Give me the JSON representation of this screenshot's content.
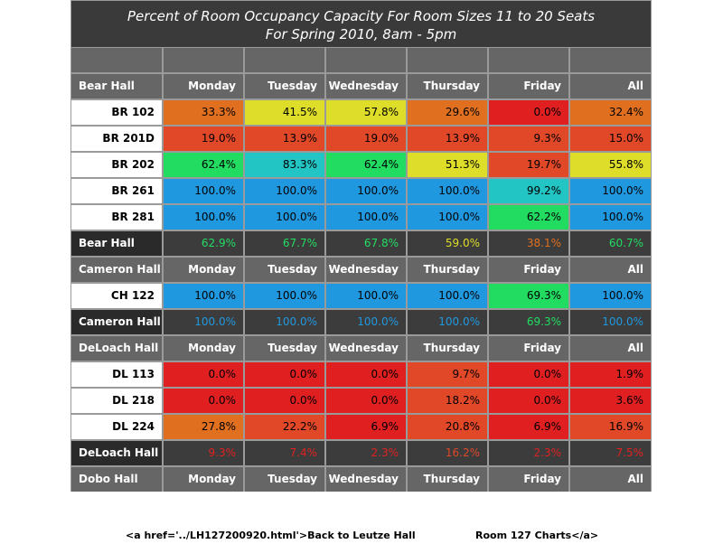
{
  "title": {
    "line1": "Percent of Room Occupancy Capacity For Room Sizes 11 to 20 Seats",
    "line2": "For Spring 2010, 8am - 5pm"
  },
  "days": [
    "Monday",
    "Tuesday",
    "Wednesday",
    "Thursday",
    "Friday",
    "All"
  ],
  "colors": {
    "red": "#e02020",
    "orange_red": "#e04828",
    "orange": "#e07020",
    "yellow": "#dede2a",
    "green": "#22dc62",
    "cyan": "#22c4c4",
    "blue": "#2098e0"
  },
  "halls": [
    {
      "name": "Bear Hall",
      "rooms": [
        {
          "name": "BR 102",
          "values": [
            "33.3%",
            "41.5%",
            "57.8%",
            "29.6%",
            "0.0%",
            "32.4%"
          ],
          "colors": [
            "orange",
            "yellow",
            "yellow",
            "orange",
            "red",
            "orange"
          ]
        },
        {
          "name": "BR 201D",
          "values": [
            "19.0%",
            "13.9%",
            "19.0%",
            "13.9%",
            "9.3%",
            "15.0%"
          ],
          "colors": [
            "orange_red",
            "orange_red",
            "orange_red",
            "orange_red",
            "orange_red",
            "orange_red"
          ]
        },
        {
          "name": "BR 202",
          "values": [
            "62.4%",
            "83.3%",
            "62.4%",
            "51.3%",
            "19.7%",
            "55.8%"
          ],
          "colors": [
            "green",
            "cyan",
            "green",
            "yellow",
            "orange_red",
            "yellow"
          ]
        },
        {
          "name": "BR 261",
          "values": [
            "100.0%",
            "100.0%",
            "100.0%",
            "100.0%",
            "99.2%",
            "100.0%"
          ],
          "colors": [
            "blue",
            "blue",
            "blue",
            "blue",
            "cyan",
            "blue"
          ]
        },
        {
          "name": "BR 281",
          "values": [
            "100.0%",
            "100.0%",
            "100.0%",
            "100.0%",
            "62.2%",
            "100.0%"
          ],
          "colors": [
            "blue",
            "blue",
            "blue",
            "blue",
            "green",
            "blue"
          ]
        }
      ],
      "total": {
        "values": [
          "62.9%",
          "67.7%",
          "67.8%",
          "59.0%",
          "38.1%",
          "60.7%"
        ],
        "colors": [
          "green",
          "green",
          "green",
          "yellow",
          "orange",
          "green"
        ]
      }
    },
    {
      "name": "Cameron Hall",
      "rooms": [
        {
          "name": "CH 122",
          "values": [
            "100.0%",
            "100.0%",
            "100.0%",
            "100.0%",
            "69.3%",
            "100.0%"
          ],
          "colors": [
            "blue",
            "blue",
            "blue",
            "blue",
            "green",
            "blue"
          ]
        }
      ],
      "total": {
        "values": [
          "100.0%",
          "100.0%",
          "100.0%",
          "100.0%",
          "69.3%",
          "100.0%"
        ],
        "colors": [
          "blue",
          "blue",
          "blue",
          "blue",
          "green",
          "blue"
        ]
      }
    },
    {
      "name": "DeLoach Hall",
      "rooms": [
        {
          "name": "DL 113",
          "values": [
            "0.0%",
            "0.0%",
            "0.0%",
            "9.7%",
            "0.0%",
            "1.9%"
          ],
          "colors": [
            "red",
            "red",
            "red",
            "orange_red",
            "red",
            "red"
          ]
        },
        {
          "name": "DL 218",
          "values": [
            "0.0%",
            "0.0%",
            "0.0%",
            "18.2%",
            "0.0%",
            "3.6%"
          ],
          "colors": [
            "red",
            "red",
            "red",
            "orange_red",
            "red",
            "red"
          ]
        },
        {
          "name": "DL 224",
          "values": [
            "27.8%",
            "22.2%",
            "6.9%",
            "20.8%",
            "6.9%",
            "16.9%"
          ],
          "colors": [
            "orange",
            "orange_red",
            "red",
            "orange_red",
            "red",
            "orange_red"
          ]
        }
      ],
      "total": {
        "values": [
          "9.3%",
          "7.4%",
          "2.3%",
          "16.2%",
          "2.3%",
          "7.5%"
        ],
        "colors": [
          "red",
          "red",
          "red",
          "orange_red",
          "red",
          "red"
        ]
      }
    },
    {
      "name": "Dobo Hall",
      "rooms": [],
      "total": null
    }
  ],
  "footer": {
    "left": "<a href='../LH127200920.html'>Back to Leutze Hall",
    "right": "Room 127 Charts</a>"
  }
}
